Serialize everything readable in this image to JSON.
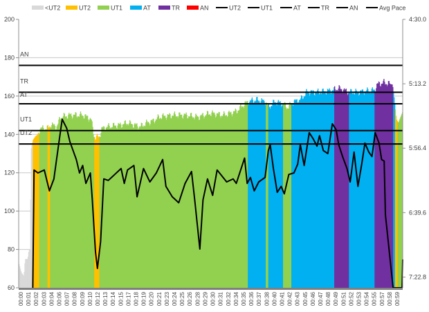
{
  "chart_data": {
    "type": "bar",
    "title": "",
    "xlabel": "",
    "ylabel": "",
    "ylim": [
      60,
      200
    ],
    "yticks": [
      "60",
      "80",
      "100",
      "120",
      "140",
      "160",
      "180",
      "200"
    ],
    "y2lim": [
      "4:30.0",
      "7:30.0"
    ],
    "y2ticks": [
      "4:30.0",
      "5:13.2",
      "5:56.4",
      "6:39.6",
      "7:22.8"
    ],
    "grid": true,
    "legend_position": "top",
    "legend": [
      {
        "label": "<UT2",
        "kind": "bar",
        "color": "#d9d9d9"
      },
      {
        "label": "UT2",
        "kind": "bar",
        "color": "#ffc000"
      },
      {
        "label": "UT1",
        "kind": "bar",
        "color": "#92d050"
      },
      {
        "label": "AT",
        "kind": "bar",
        "color": "#00b0f0"
      },
      {
        "label": "TR",
        "kind": "bar",
        "color": "#7030a0"
      },
      {
        "label": "AN",
        "kind": "bar",
        "color": "#ff0000"
      },
      {
        "label": "UT2",
        "kind": "line",
        "color": "#000000"
      },
      {
        "label": "UT1",
        "kind": "line",
        "color": "#000000"
      },
      {
        "label": "AT",
        "kind": "line",
        "color": "#000000"
      },
      {
        "label": "TR",
        "kind": "line",
        "color": "#000000"
      },
      {
        "label": "AN",
        "kind": "line",
        "color": "#000000"
      },
      {
        "label": "Avg Pace",
        "kind": "line",
        "color": "#000000"
      }
    ],
    "x_tick_labels": [
      "00:00",
      "00:01",
      "00:02",
      "00:03",
      "00:04",
      "00:06",
      "00:07",
      "00:08",
      "00:09",
      "00:10",
      "00:12",
      "00:13",
      "00:14",
      "00:15",
      "00:17",
      "00:18",
      "00:19",
      "00:20",
      "00:21",
      "00:23",
      "00:24",
      "00:25",
      "00:26",
      "00:28",
      "00:29",
      "00:30",
      "00:31",
      "00:32",
      "00:34",
      "00:35",
      "00:36",
      "00:37",
      "00:38",
      "00:40",
      "00:41",
      "00:42",
      "00:43",
      "00:45",
      "00:46",
      "00:47",
      "00:48",
      "00:49",
      "00:51",
      "00:52",
      "00:53",
      "00:54",
      "00:55",
      "00:57",
      "00:58",
      "00:59"
    ],
    "thresholds": [
      {
        "name": "AN",
        "value": 176
      },
      {
        "name": "TR",
        "value": 162
      },
      {
        "name": "AT",
        "value": 156
      },
      {
        "name": "UT1",
        "value": 142
      },
      {
        "name": "UT2",
        "value": 135
      }
    ],
    "zone_colors": {
      "<UT2": "#d9d9d9",
      "UT2": "#ffc000",
      "UT1": "#92d050",
      "AT": "#00b0f0",
      "TR": "#7030a0",
      "AN": "#ff0000"
    },
    "zone_segments": [
      {
        "from": 0,
        "to": 2.2,
        "zone": "<UT2"
      },
      {
        "from": 2.2,
        "to": 3.2,
        "zone": "UT2"
      },
      {
        "from": 3.2,
        "to": 4.5,
        "zone": "UT1"
      },
      {
        "from": 4.5,
        "to": 4.9,
        "zone": "UT2"
      },
      {
        "from": 4.9,
        "to": 11.8,
        "zone": "UT1"
      },
      {
        "from": 11.8,
        "to": 12.6,
        "zone": "UT2"
      },
      {
        "from": 12.6,
        "to": 35.8,
        "zone": "UT1"
      },
      {
        "from": 35.8,
        "to": 38.6,
        "zone": "AT"
      },
      {
        "from": 38.6,
        "to": 39.0,
        "zone": "UT1"
      },
      {
        "from": 39.0,
        "to": 41.3,
        "zone": "AT"
      },
      {
        "from": 41.3,
        "to": 42.6,
        "zone": "UT1"
      },
      {
        "from": 42.6,
        "to": 49.3,
        "zone": "AT"
      },
      {
        "from": 49.3,
        "to": 51.6,
        "zone": "TR"
      },
      {
        "from": 51.6,
        "to": 55.6,
        "zone": "AT"
      },
      {
        "from": 55.6,
        "to": 58.5,
        "zone": "TR"
      },
      {
        "from": 58.5,
        "to": 58.8,
        "zone": "AT"
      },
      {
        "from": 58.8,
        "to": 59.2,
        "zone": "UT2"
      },
      {
        "from": 59.2,
        "to": 60,
        "zone": "UT1"
      }
    ],
    "heart_rate": {
      "minute": [
        0,
        0.4,
        0.8,
        1.0,
        1.4,
        1.6,
        1.8,
        1.9,
        2.2,
        2.6,
        3.0,
        3.3,
        4.5,
        5.0,
        6.0,
        6.5,
        8,
        10,
        11.3,
        11.7,
        12,
        12.6,
        13,
        14,
        16,
        17,
        18,
        19,
        20,
        21,
        22,
        24,
        26,
        28,
        30,
        32,
        34,
        35,
        35.8,
        37,
        38.6,
        39,
        40,
        41.3,
        42,
        43,
        44,
        45,
        47,
        49,
        50,
        51.6,
        53,
        55.6,
        56,
        57,
        58.4,
        58.7,
        59,
        59.3,
        60
      ],
      "bpm": [
        73,
        68,
        66,
        75,
        75,
        80,
        80,
        132,
        137,
        139,
        140,
        143,
        143,
        145,
        144,
        149,
        150,
        150,
        148,
        140,
        138,
        139,
        143,
        144,
        145,
        146,
        145,
        144,
        146,
        147,
        149,
        150,
        150,
        149,
        151,
        150,
        152,
        155,
        157,
        158,
        157,
        154,
        157,
        156,
        154,
        157,
        158,
        162,
        162,
        163,
        164,
        162,
        162,
        163,
        166,
        167,
        166,
        158,
        148,
        146,
        152
      ]
    },
    "avg_pace": {
      "minute": [
        2.2,
        2.4,
        3,
        4,
        4.8,
        5.5,
        6.3,
        6.8,
        7.5,
        8,
        9,
        9.5,
        10,
        10.5,
        11.2,
        11.5,
        12,
        12.3,
        12.8,
        13.3,
        14,
        15,
        16,
        16.5,
        17,
        18,
        18.5,
        19.5,
        20.5,
        21.5,
        22.5,
        23,
        24,
        25,
        26,
        27,
        27.5,
        28.3,
        28.8,
        29.5,
        30.3,
        31,
        32.5,
        33.5,
        34,
        34.6,
        35.3,
        35.7,
        36.2,
        36.8,
        37.5,
        38.5,
        39,
        39.3,
        39.8,
        40.4,
        41,
        41.5,
        42.2,
        43,
        43.6,
        44,
        44.6,
        45.4,
        46,
        46.6,
        47,
        47.6,
        48.3,
        49,
        49.6,
        50,
        50.6,
        51.3,
        51.8,
        52.4,
        53,
        53.6,
        54.1,
        54.7,
        55.2,
        55.7,
        56.3,
        56.7,
        57.1,
        57.3,
        58.5,
        59.8,
        59.9,
        60
      ],
      "pace": [
        "7:30",
        "6:11",
        "6:13",
        "6:11",
        "6:25",
        "6:17",
        "5:52",
        "5:37",
        "5:43",
        "5:52",
        "6:04",
        "6:13",
        "6:08",
        "6:20",
        "6:13",
        "6:31",
        "7:06",
        "7:17",
        "6:59",
        "6:17",
        "6:18",
        "6:14",
        "6:10",
        "6:20",
        "6:11",
        "6:08",
        "6:29",
        "6:10",
        "6:19",
        "6:13",
        "6:04",
        "6:22",
        "6:29",
        "6:33",
        "6:20",
        "6:12",
        "6:31",
        "7:04",
        "6:31",
        "6:17",
        "6:28",
        "6:11",
        "6:19",
        "6:17",
        "6:20",
        "6:12",
        "6:03",
        "6:20",
        "6:16",
        "6:25",
        "6:19",
        "6:16",
        "5:58",
        "5:54",
        "6:10",
        "6:26",
        "6:22",
        "6:27",
        "6:14",
        "6:13",
        "6:07",
        "5:54",
        "6:08",
        "5:46",
        "5:50",
        "5:55",
        "5:48",
        "5:58",
        "6:00",
        "5:40",
        "5:44",
        "5:54",
        "6:02",
        "6:10",
        "6:19",
        "5:59",
        "6:22",
        "6:07",
        "5:53",
        "5:59",
        "6:02",
        "5:46",
        "5:53",
        "6:04",
        "6:05",
        "6:41",
        "7:30",
        "7:30",
        "7:30",
        "7:11"
      ]
    }
  }
}
